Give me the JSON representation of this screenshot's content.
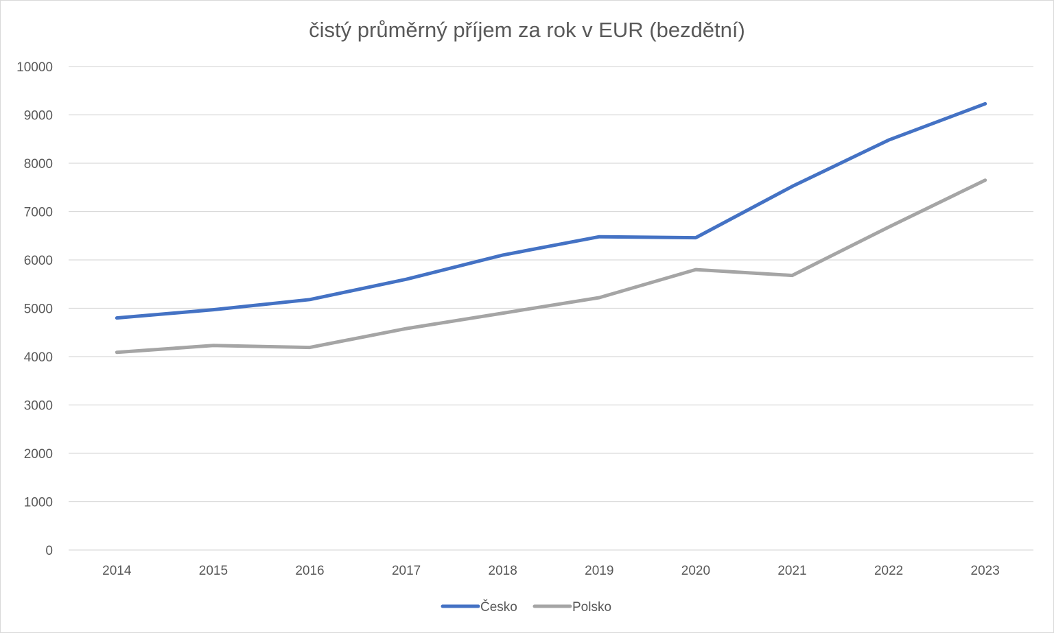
{
  "chart_data": {
    "type": "line",
    "title": "čistý průměrný příjem za rok v EUR (bezdětní)",
    "xlabel": "",
    "ylabel": "",
    "categories": [
      "2014",
      "2015",
      "2016",
      "2017",
      "2018",
      "2019",
      "2020",
      "2021",
      "2022",
      "2023"
    ],
    "series": [
      {
        "name": "Česko",
        "color": "#4472c4",
        "values": [
          4800,
          4970,
          5180,
          5600,
          6100,
          6480,
          6460,
          7520,
          8480,
          9230
        ]
      },
      {
        "name": "Polsko",
        "color": "#a5a5a5",
        "values": [
          4090,
          4230,
          4190,
          4580,
          4900,
          5220,
          5800,
          5680,
          6680,
          7650
        ]
      }
    ],
    "ylim": [
      0,
      10000
    ],
    "yticks": [
      "0",
      "1000",
      "2000",
      "3000",
      "4000",
      "5000",
      "6000",
      "7000",
      "8000",
      "9000",
      "10000"
    ],
    "grid": true,
    "legend": "bottom"
  }
}
